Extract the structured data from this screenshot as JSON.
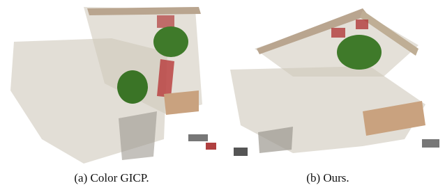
{
  "figure": {
    "subfigures": [
      {
        "caption": "(a) Color GICP."
      },
      {
        "caption": "(b) Ours."
      }
    ]
  }
}
